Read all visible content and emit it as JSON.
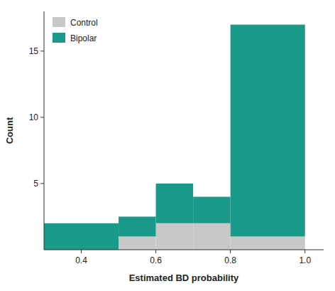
{
  "chart_data": {
    "type": "histogram",
    "bins": [
      0.3,
      0.5,
      0.6,
      0.7,
      0.8,
      1.0
    ],
    "series": [
      {
        "name": "Control",
        "color": "#c8c8c8",
        "values": [
          0,
          1,
          2,
          2,
          1
        ]
      },
      {
        "name": "Bipolar",
        "color": "#1a9a8a",
        "values": [
          2,
          1.5,
          3,
          2,
          16
        ]
      }
    ],
    "stacked": true,
    "x_label": "Estimated BD probability",
    "y_label": "Count",
    "xlim": [
      0.3,
      1.05
    ],
    "xticks": [
      0.4,
      0.6,
      0.8,
      {
        "value": 1.0,
        "label": "1.0"
      }
    ],
    "ylim": [
      0,
      18
    ],
    "yticks": [
      5,
      10,
      15
    ],
    "grid": false,
    "legend": "upper left"
  }
}
